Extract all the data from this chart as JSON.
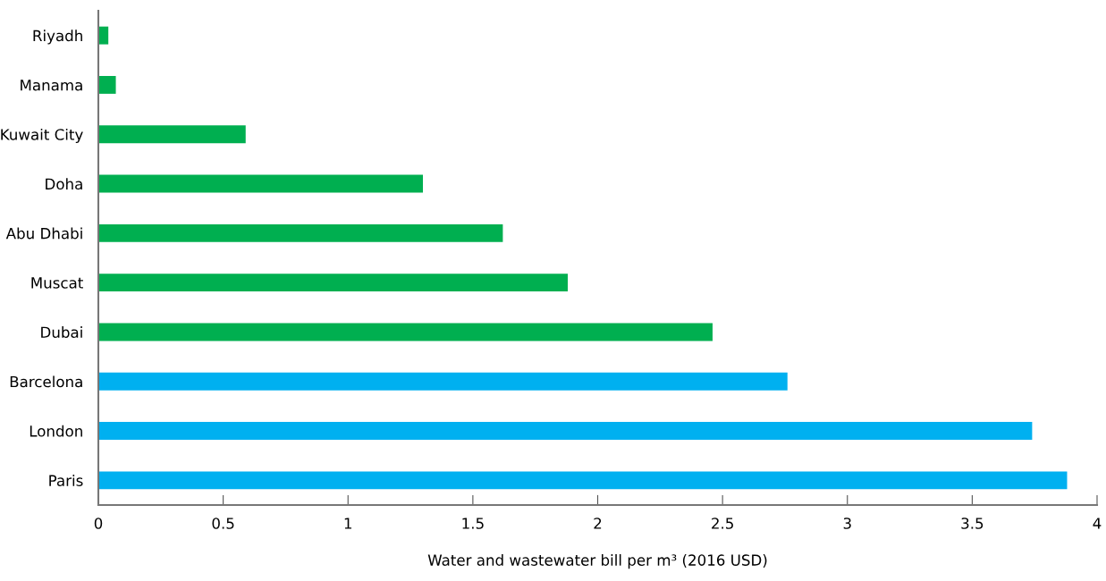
{
  "chart_data": {
    "type": "bar",
    "orientation": "horizontal",
    "categories": [
      "Riyadh",
      "Manama",
      "Kuwait City",
      "Doha",
      "Abu Dhabi",
      "Muscat",
      "Dubai",
      "Barcelona",
      "London",
      "Paris"
    ],
    "values": [
      0.04,
      0.07,
      0.59,
      1.3,
      1.62,
      1.88,
      2.46,
      2.76,
      3.74,
      3.88
    ],
    "colors": [
      "#00af50",
      "#00af50",
      "#00af50",
      "#00af50",
      "#00af50",
      "#00af50",
      "#00af50",
      "#00b0f0",
      "#00b0f0",
      "#00b0f0"
    ],
    "xlabel": "Water and wastewater bill per m³ (2016 USD)",
    "xlim": [
      0,
      4
    ],
    "xticks": [
      0,
      0.5,
      1,
      1.5,
      2,
      2.5,
      3,
      3.5,
      4
    ],
    "grid": false,
    "legend": false
  }
}
